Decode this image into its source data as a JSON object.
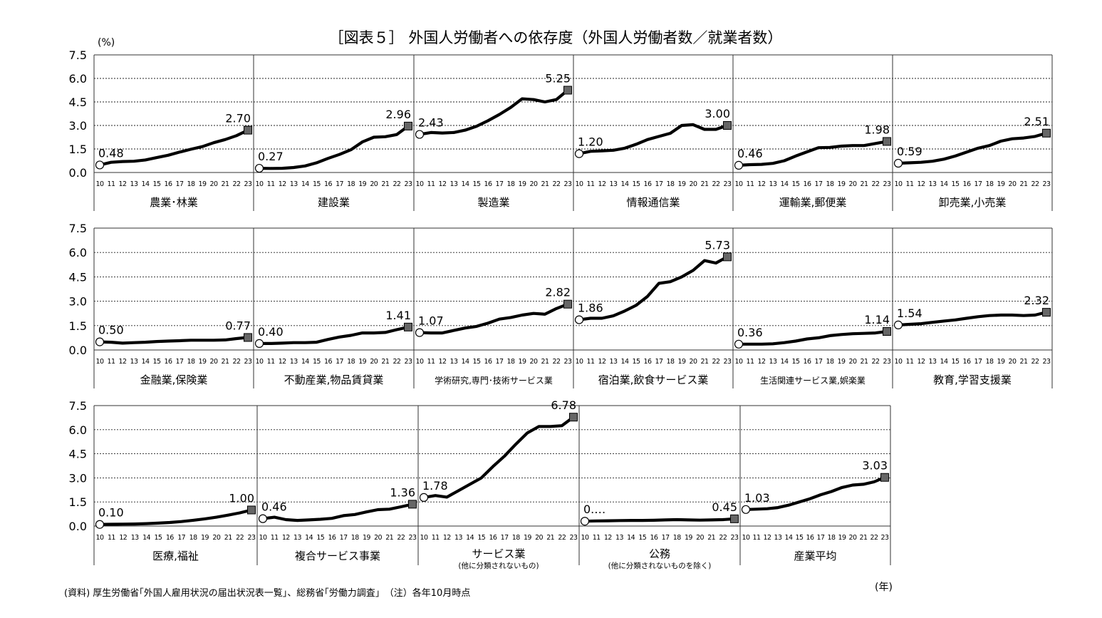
{
  "chart_data": {
    "type": "line",
    "title": "［図表５］ 外国人労働者への依存度（外国人労働者数／就業者数）",
    "yunit": "(%)",
    "xunit": "(年)",
    "ylim": [
      0,
      7.5
    ],
    "yticks": [
      "0.0",
      "1.5",
      "3.0",
      "4.5",
      "6.0",
      "7.5"
    ],
    "x": [
      "10",
      "11",
      "12",
      "13",
      "14",
      "15",
      "16",
      "17",
      "18",
      "19",
      "20",
      "21",
      "22",
      "23"
    ],
    "grid": true,
    "source_note": "(資料) 厚生労働省｢外国人雇用状況の届出状況表一覧｣、総務省｢労働力調査｣　（注）各年10月時点",
    "panels": [
      {
        "name": "農業･林業",
        "subtitle": "",
        "start_label": "0.48",
        "end_label": "2.70",
        "values": [
          0.48,
          0.65,
          0.7,
          0.72,
          0.8,
          0.95,
          1.1,
          1.3,
          1.48,
          1.65,
          1.9,
          2.1,
          2.35,
          2.7
        ]
      },
      {
        "name": "建設業",
        "subtitle": "",
        "start_label": "0.27",
        "end_label": "2.96",
        "values": [
          0.27,
          0.26,
          0.27,
          0.32,
          0.42,
          0.62,
          0.9,
          1.15,
          1.45,
          1.95,
          2.25,
          2.28,
          2.42,
          2.96
        ]
      },
      {
        "name": "製造業",
        "subtitle": "",
        "start_label": "2.43",
        "end_label": "5.25",
        "values": [
          2.43,
          2.55,
          2.52,
          2.55,
          2.7,
          2.95,
          3.3,
          3.7,
          4.15,
          4.7,
          4.65,
          4.5,
          4.65,
          5.25
        ]
      },
      {
        "name": "情報通信業",
        "subtitle": "",
        "start_label": "1.20",
        "end_label": "3.00",
        "values": [
          1.2,
          1.35,
          1.38,
          1.42,
          1.55,
          1.8,
          2.1,
          2.3,
          2.5,
          3.0,
          3.05,
          2.75,
          2.75,
          3.0
        ]
      },
      {
        "name": "運輸業,郵便業",
        "subtitle": "",
        "start_label": "0.46",
        "end_label": "1.98",
        "values": [
          0.46,
          0.5,
          0.52,
          0.58,
          0.75,
          1.05,
          1.32,
          1.58,
          1.6,
          1.68,
          1.72,
          1.72,
          1.85,
          1.98
        ]
      },
      {
        "name": "卸売業,小売業",
        "subtitle": "",
        "start_label": "0.59",
        "end_label": "2.51",
        "values": [
          0.59,
          0.62,
          0.65,
          0.72,
          0.85,
          1.05,
          1.3,
          1.55,
          1.72,
          2.0,
          2.15,
          2.2,
          2.3,
          2.51
        ]
      },
      {
        "name": "金融業,保険業",
        "subtitle": "",
        "start_label": "0.50",
        "end_label": "0.77",
        "values": [
          0.5,
          0.48,
          0.42,
          0.45,
          0.48,
          0.52,
          0.55,
          0.57,
          0.6,
          0.6,
          0.6,
          0.62,
          0.7,
          0.77
        ]
      },
      {
        "name": "不動産業,物品賃貸業",
        "subtitle": "",
        "start_label": "0.40",
        "end_label": "1.41",
        "values": [
          0.4,
          0.4,
          0.42,
          0.45,
          0.45,
          0.48,
          0.65,
          0.8,
          0.9,
          1.05,
          1.05,
          1.08,
          1.25,
          1.41
        ]
      },
      {
        "name": "学術研究,専門･技術サービス業",
        "subtitle": "",
        "start_label": "1.07",
        "end_label": "2.82",
        "values": [
          1.07,
          1.05,
          1.05,
          1.2,
          1.35,
          1.45,
          1.65,
          1.9,
          2.0,
          2.15,
          2.25,
          2.2,
          2.55,
          2.82
        ]
      },
      {
        "name": "宿泊業,飲食サービス業",
        "subtitle": "",
        "start_label": "1.86",
        "end_label": "5.73",
        "values": [
          1.86,
          1.95,
          1.95,
          2.1,
          2.4,
          2.75,
          3.3,
          4.1,
          4.2,
          4.5,
          4.9,
          5.5,
          5.35,
          5.73
        ]
      },
      {
        "name": "生活関連サービス業,娯楽業",
        "subtitle": "",
        "start_label": "0.36",
        "end_label": "1.14",
        "values": [
          0.36,
          0.36,
          0.36,
          0.38,
          0.45,
          0.55,
          0.68,
          0.75,
          0.88,
          0.95,
          1.0,
          1.02,
          1.05,
          1.14
        ]
      },
      {
        "name": "教育,学習支援業",
        "subtitle": "",
        "start_label": "1.54",
        "end_label": "2.32",
        "values": [
          1.54,
          1.58,
          1.62,
          1.7,
          1.78,
          1.85,
          1.95,
          2.05,
          2.12,
          2.15,
          2.15,
          2.12,
          2.15,
          2.32
        ]
      },
      {
        "name": "医療,福祉",
        "subtitle": "",
        "start_label": "0.10",
        "end_label": "1.00",
        "values": [
          0.1,
          0.11,
          0.12,
          0.13,
          0.15,
          0.18,
          0.22,
          0.28,
          0.36,
          0.45,
          0.55,
          0.68,
          0.82,
          1.0
        ]
      },
      {
        "name": "複合サービス事業",
        "subtitle": "",
        "start_label": "0.46",
        "end_label": "1.36",
        "values": [
          0.46,
          0.55,
          0.4,
          0.35,
          0.38,
          0.42,
          0.48,
          0.65,
          0.72,
          0.88,
          1.02,
          1.05,
          1.2,
          1.36
        ]
      },
      {
        "name": "サービス業",
        "subtitle": "(他に分類されないもの)",
        "start_label": "1.78",
        "end_label": "6.78",
        "values": [
          1.78,
          1.9,
          1.8,
          2.2,
          2.6,
          3.0,
          3.7,
          4.35,
          5.1,
          5.8,
          6.2,
          6.2,
          6.25,
          6.78
        ]
      },
      {
        "name": "公務",
        "subtitle": "(他に分類されないものを除く)",
        "start_label": "0.…",
        "end_label": "0.45",
        "values": [
          0.3,
          0.32,
          0.33,
          0.34,
          0.35,
          0.35,
          0.36,
          0.38,
          0.4,
          0.38,
          0.37,
          0.38,
          0.4,
          0.45
        ]
      },
      {
        "name": "産業平均",
        "subtitle": "",
        "start_label": "1.03",
        "end_label": "3.03",
        "values": [
          1.03,
          1.05,
          1.08,
          1.15,
          1.3,
          1.5,
          1.7,
          1.95,
          2.15,
          2.4,
          2.55,
          2.6,
          2.75,
          3.03
        ]
      }
    ]
  }
}
